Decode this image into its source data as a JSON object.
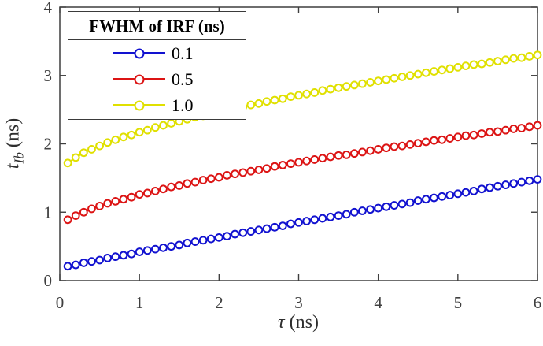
{
  "figure": {
    "background": "#ffffff",
    "axis_color": "#3f3f3f",
    "tick_label_color": "#3f3f3f"
  },
  "legend": {
    "title": "FWHM of IRF (ns)",
    "entries": [
      {
        "label": "0.1",
        "color": "#1212d0"
      },
      {
        "label": "0.5",
        "color": "#dc1414"
      },
      {
        "label": "1.0",
        "color": "#e0e000"
      }
    ]
  },
  "chart_data": {
    "type": "line",
    "title": "",
    "xlabel": "τ (ns)",
    "ylabel": "t_Ib (ns)",
    "xlabel_parts": {
      "symbol": "τ",
      "units": " (ns)"
    },
    "ylabel_parts": {
      "symbol": "t",
      "subscript": "Ib",
      "units": " (ns)"
    },
    "xlim": [
      0,
      6
    ],
    "ylim": [
      0,
      4
    ],
    "xticks": [
      "0",
      "1",
      "2",
      "3",
      "4",
      "5",
      "6"
    ],
    "yticks": [
      "0",
      "1",
      "2",
      "3",
      "4"
    ],
    "grid": false,
    "legend_position": "top-left",
    "legend_title": "FWHM of IRF (ns)",
    "marker": "open-circle",
    "x": [
      0.1,
      0.2,
      0.3,
      0.4,
      0.5,
      0.6,
      0.7,
      0.8,
      0.9,
      1.0,
      1.1,
      1.2,
      1.3,
      1.4,
      1.5,
      1.6,
      1.7,
      1.8,
      1.9,
      2.0,
      2.1,
      2.2,
      2.3,
      2.4,
      2.5,
      2.6,
      2.7,
      2.8,
      2.9,
      3.0,
      3.1,
      3.2,
      3.3,
      3.4,
      3.5,
      3.6,
      3.7,
      3.8,
      3.9,
      4.0,
      4.1,
      4.2,
      4.3,
      4.4,
      4.5,
      4.6,
      4.7,
      4.8,
      4.9,
      5.0,
      5.1,
      5.2,
      5.3,
      5.4,
      5.5,
      5.6,
      5.7,
      5.8,
      5.9,
      6.0
    ],
    "series": [
      {
        "name": "0.1",
        "color": "#1212d0",
        "values": [
          0.21,
          0.23,
          0.26,
          0.28,
          0.3,
          0.33,
          0.35,
          0.37,
          0.39,
          0.42,
          0.44,
          0.46,
          0.48,
          0.5,
          0.52,
          0.55,
          0.57,
          0.59,
          0.61,
          0.63,
          0.65,
          0.68,
          0.7,
          0.72,
          0.74,
          0.76,
          0.78,
          0.8,
          0.83,
          0.85,
          0.87,
          0.89,
          0.91,
          0.93,
          0.95,
          0.97,
          1.0,
          1.02,
          1.04,
          1.06,
          1.08,
          1.1,
          1.12,
          1.14,
          1.17,
          1.19,
          1.21,
          1.23,
          1.25,
          1.27,
          1.29,
          1.31,
          1.34,
          1.36,
          1.38,
          1.4,
          1.42,
          1.44,
          1.46,
          1.48
        ]
      },
      {
        "name": "0.5",
        "color": "#dc1414",
        "values": [
          0.89,
          0.95,
          1.0,
          1.05,
          1.09,
          1.13,
          1.16,
          1.19,
          1.22,
          1.26,
          1.28,
          1.31,
          1.34,
          1.37,
          1.39,
          1.42,
          1.44,
          1.47,
          1.49,
          1.51,
          1.54,
          1.56,
          1.58,
          1.6,
          1.62,
          1.64,
          1.67,
          1.69,
          1.71,
          1.73,
          1.75,
          1.77,
          1.79,
          1.81,
          1.83,
          1.84,
          1.86,
          1.88,
          1.9,
          1.92,
          1.94,
          1.96,
          1.97,
          1.99,
          2.01,
          2.03,
          2.05,
          2.06,
          2.08,
          2.1,
          2.12,
          2.13,
          2.15,
          2.17,
          2.18,
          2.2,
          2.22,
          2.23,
          2.25,
          2.27
        ]
      },
      {
        "name": "1.0",
        "color": "#e0e000",
        "values": [
          1.72,
          1.8,
          1.87,
          1.92,
          1.97,
          2.02,
          2.06,
          2.1,
          2.13,
          2.17,
          2.2,
          2.24,
          2.27,
          2.3,
          2.33,
          2.36,
          2.39,
          2.41,
          2.44,
          2.47,
          2.49,
          2.52,
          2.54,
          2.57,
          2.59,
          2.62,
          2.64,
          2.66,
          2.69,
          2.71,
          2.73,
          2.75,
          2.78,
          2.8,
          2.82,
          2.84,
          2.86,
          2.88,
          2.9,
          2.92,
          2.94,
          2.96,
          2.98,
          3.0,
          3.02,
          3.04,
          3.06,
          3.08,
          3.1,
          3.12,
          3.14,
          3.16,
          3.17,
          3.19,
          3.21,
          3.23,
          3.25,
          3.26,
          3.28,
          3.3
        ]
      }
    ]
  }
}
